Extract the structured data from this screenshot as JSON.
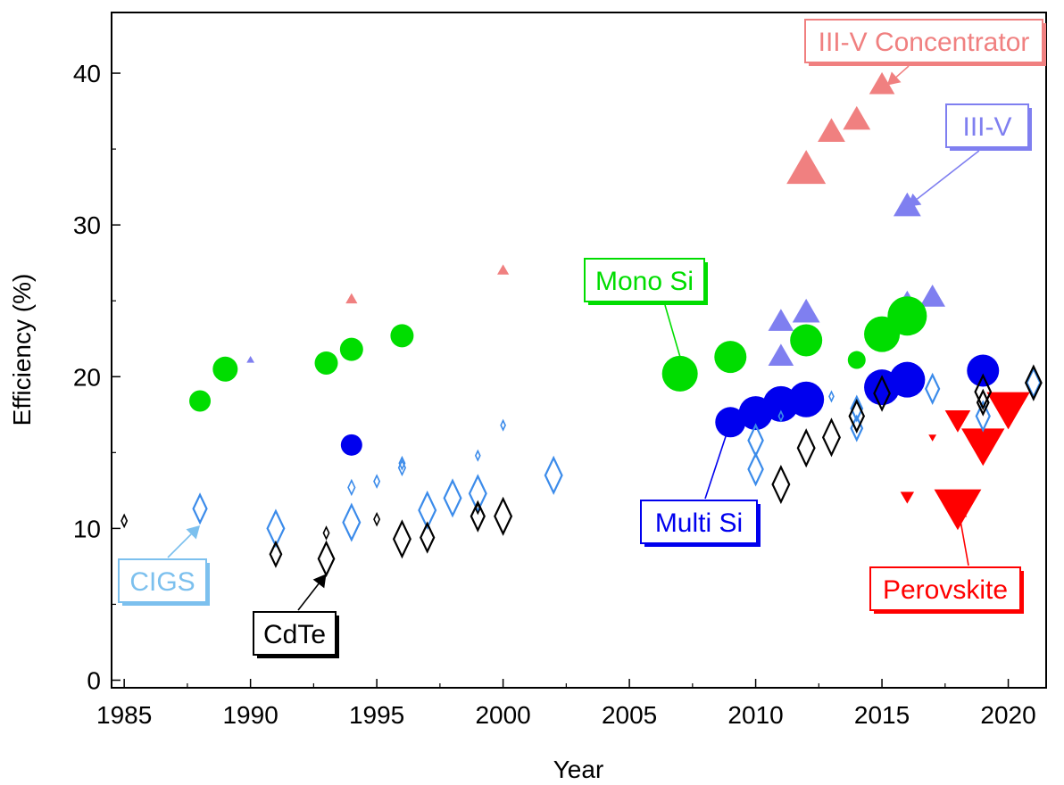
{
  "chart_data": {
    "type": "scatter",
    "title": "",
    "xlabel": "Year",
    "ylabel": "Efficiency (%)",
    "xlim": [
      1984.5,
      2021.5
    ],
    "ylim": [
      -0.5,
      44
    ],
    "x_ticks": [
      1985,
      1990,
      1995,
      2000,
      2005,
      2010,
      2015,
      2020
    ],
    "y_ticks": [
      0,
      10,
      20,
      30,
      40
    ],
    "grid": false,
    "series": [
      {
        "name": "Mono Si",
        "marker": "circle",
        "filled": true,
        "color": "#00dd00",
        "points": [
          {
            "x": 1988,
            "y": 18.4,
            "size": 12
          },
          {
            "x": 1989,
            "y": 20.5,
            "size": 14
          },
          {
            "x": 1993,
            "y": 20.9,
            "size": 13
          },
          {
            "x": 1994,
            "y": 21.8,
            "size": 13
          },
          {
            "x": 1996,
            "y": 22.7,
            "size": 13
          },
          {
            "x": 2007,
            "y": 20.2,
            "size": 20
          },
          {
            "x": 2009,
            "y": 21.3,
            "size": 18
          },
          {
            "x": 2012,
            "y": 22.4,
            "size": 18
          },
          {
            "x": 2014,
            "y": 21.1,
            "size": 10
          },
          {
            "x": 2015,
            "y": 22.8,
            "size": 20
          },
          {
            "x": 2016,
            "y": 24.0,
            "size": 22
          }
        ]
      },
      {
        "name": "Multi Si",
        "marker": "circle",
        "filled": true,
        "color": "#0000ee",
        "points": [
          {
            "x": 1994,
            "y": 15.5,
            "size": 12
          },
          {
            "x": 2009,
            "y": 17.0,
            "size": 17
          },
          {
            "x": 2010,
            "y": 17.6,
            "size": 19
          },
          {
            "x": 2011,
            "y": 18.2,
            "size": 20
          },
          {
            "x": 2012,
            "y": 18.5,
            "size": 20
          },
          {
            "x": 2015,
            "y": 19.3,
            "size": 20
          },
          {
            "x": 2016,
            "y": 19.8,
            "size": 20
          },
          {
            "x": 2019,
            "y": 20.4,
            "size": 18
          }
        ]
      },
      {
        "name": "III-V Concentrator",
        "marker": "triangle-up",
        "filled": true,
        "color": "#f08080",
        "points": [
          {
            "x": 1994,
            "y": 25.1,
            "size": 6
          },
          {
            "x": 2000,
            "y": 27.0,
            "size": 6
          },
          {
            "x": 2012,
            "y": 33.6,
            "size": 20
          },
          {
            "x": 2013,
            "y": 36.1,
            "size": 14
          },
          {
            "x": 2014,
            "y": 36.9,
            "size": 14
          },
          {
            "x": 2015,
            "y": 39.2,
            "size": 13
          }
        ]
      },
      {
        "name": "III-V",
        "marker": "triangle-up",
        "filled": true,
        "color": "#7f7ff0",
        "points": [
          {
            "x": 1990,
            "y": 21.1,
            "size": 4
          },
          {
            "x": 2011,
            "y": 21.3,
            "size": 13
          },
          {
            "x": 2011,
            "y": 23.6,
            "size": 13
          },
          {
            "x": 2012,
            "y": 24.2,
            "size": 14
          },
          {
            "x": 2016,
            "y": 24.8,
            "size": 13
          },
          {
            "x": 2017,
            "y": 25.2,
            "size": 13
          },
          {
            "x": 2016,
            "y": 31.2,
            "size": 14
          }
        ]
      },
      {
        "name": "Perovskite",
        "marker": "triangle-down",
        "filled": true,
        "color": "#ff0000",
        "points": [
          {
            "x": 2016,
            "y": 12.1,
            "size": 7
          },
          {
            "x": 2017,
            "y": 16.0,
            "size": 4
          },
          {
            "x": 2018,
            "y": 11.5,
            "size": 24
          },
          {
            "x": 2018,
            "y": 17.2,
            "size": 13
          },
          {
            "x": 2019,
            "y": 15.6,
            "size": 22
          },
          {
            "x": 2020,
            "y": 18.0,
            "size": 22
          }
        ]
      },
      {
        "name": "CIGS",
        "marker": "diamond",
        "filled": false,
        "color": "#3b8bea",
        "points": [
          {
            "x": 1988,
            "y": 11.3,
            "size": 12
          },
          {
            "x": 1991,
            "y": 10.0,
            "size": 15
          },
          {
            "x": 1994,
            "y": 12.7,
            "size": 6
          },
          {
            "x": 1994,
            "y": 10.4,
            "size": 15
          },
          {
            "x": 1995,
            "y": 13.1,
            "size": 5
          },
          {
            "x": 1996,
            "y": 14.0,
            "size": 6
          },
          {
            "x": 1996,
            "y": 14.3,
            "size": 5
          },
          {
            "x": 1997,
            "y": 11.2,
            "size": 15
          },
          {
            "x": 1998,
            "y": 12.0,
            "size": 15
          },
          {
            "x": 1999,
            "y": 12.3,
            "size": 15
          },
          {
            "x": 1999,
            "y": 14.8,
            "size": 4
          },
          {
            "x": 2000,
            "y": 16.8,
            "size": 4
          },
          {
            "x": 2002,
            "y": 13.5,
            "size": 15
          },
          {
            "x": 2010,
            "y": 15.8,
            "size": 13
          },
          {
            "x": 2010,
            "y": 13.9,
            "size": 13
          },
          {
            "x": 2011,
            "y": 17.4,
            "size": 4
          },
          {
            "x": 2013,
            "y": 18.7,
            "size": 4
          },
          {
            "x": 2014,
            "y": 17.9,
            "size": 10
          },
          {
            "x": 2014,
            "y": 16.6,
            "size": 10
          },
          {
            "x": 2017,
            "y": 19.2,
            "size": 12
          },
          {
            "x": 2019,
            "y": 17.4,
            "size": 12
          },
          {
            "x": 2021,
            "y": 19.6,
            "size": 12
          }
        ]
      },
      {
        "name": "CdTe",
        "marker": "diamond",
        "filled": false,
        "color": "#000000",
        "points": [
          {
            "x": 1985,
            "y": 10.5,
            "size": 5
          },
          {
            "x": 1991,
            "y": 8.3,
            "size": 10
          },
          {
            "x": 1993,
            "y": 9.7,
            "size": 5
          },
          {
            "x": 1993,
            "y": 8.0,
            "size": 14
          },
          {
            "x": 1995,
            "y": 10.6,
            "size": 5
          },
          {
            "x": 1996,
            "y": 9.3,
            "size": 15
          },
          {
            "x": 1997,
            "y": 9.4,
            "size": 12
          },
          {
            "x": 1999,
            "y": 10.8,
            "size": 12
          },
          {
            "x": 1999,
            "y": 11.3,
            "size": 4
          },
          {
            "x": 2000,
            "y": 10.8,
            "size": 15
          },
          {
            "x": 2011,
            "y": 12.9,
            "size": 15
          },
          {
            "x": 2012,
            "y": 15.3,
            "size": 15
          },
          {
            "x": 2013,
            "y": 16.0,
            "size": 15
          },
          {
            "x": 2014,
            "y": 17.4,
            "size": 13
          },
          {
            "x": 2015,
            "y": 18.9,
            "size": 14
          },
          {
            "x": 2019,
            "y": 19.0,
            "size": 14
          },
          {
            "x": 2019,
            "y": 18.3,
            "size": 10
          },
          {
            "x": 2021,
            "y": 19.6,
            "size": 14
          }
        ]
      }
    ],
    "annotations": [
      {
        "text": "III-V Concentrator",
        "color": "#f08080",
        "series": "III-V Concentrator",
        "arrow_to": {
          "x": 2015.2,
          "y": 39.2
        }
      },
      {
        "text": "III-V",
        "color": "#7f7ff0",
        "series": "III-V",
        "arrow_to": {
          "x": 2016,
          "y": 31.2
        }
      },
      {
        "text": "Mono Si",
        "color": "#00dd00",
        "series": "Mono Si",
        "arrow_to": {
          "x": 2007.2,
          "y": 20.2
        }
      },
      {
        "text": "Multi Si",
        "color": "#0000ee",
        "series": "Multi Si",
        "arrow_to": {
          "x": 2009,
          "y": 17.0
        }
      },
      {
        "text": "Perovskite",
        "color": "#ff0000",
        "series": "Perovskite",
        "arrow_to": {
          "x": 2018,
          "y": 11.5
        }
      },
      {
        "text": "CIGS",
        "color": "#7cc0ee",
        "series": "CIGS",
        "arrow_to": {
          "x": 1988,
          "y": 10.2
        }
      },
      {
        "text": "CdTe",
        "color": "#000000",
        "series": "CdTe",
        "arrow_to": {
          "x": 1993,
          "y": 7.0
        }
      }
    ]
  }
}
